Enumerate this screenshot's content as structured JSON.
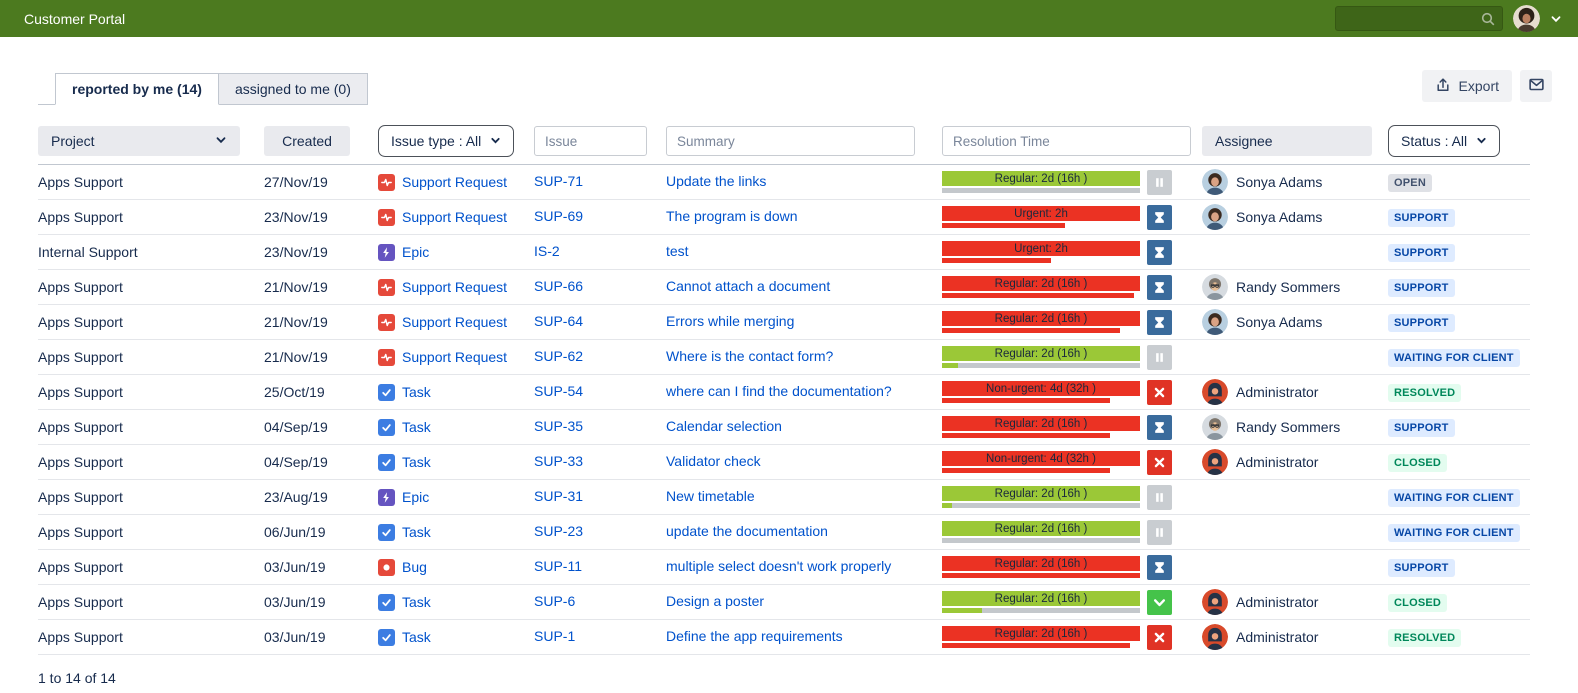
{
  "topbar": {
    "title": "Customer Portal",
    "search_value": ""
  },
  "tabs": [
    {
      "label": "reported by me (14)",
      "active": true
    },
    {
      "label": "assigned to me (0)",
      "active": false
    }
  ],
  "actions": {
    "export_label": "Export"
  },
  "filters": {
    "project_label": "Project",
    "created_label": "Created",
    "issue_type_label": "Issue type : All",
    "issue_placeholder": "Issue",
    "summary_placeholder": "Summary",
    "resolution_placeholder": "Resolution Time",
    "assignee_label": "Assignee",
    "status_label": "Status : All"
  },
  "colors": {
    "topbar_green": "#4C7A1F",
    "sla_green": "#9BC837",
    "sla_red": "#EB3223",
    "link_blue": "#0052CC"
  },
  "rows": [
    {
      "project": "Apps Support",
      "created": "27/Nov/19",
      "type": "Support Request",
      "type_icon": "support-request",
      "issue": "SUP-71",
      "summary": "Update the links",
      "resolution": "Regular: 2d (16h )",
      "bar": "green",
      "progress": 0,
      "res_icon": "pause",
      "assignee": "Sonya Adams",
      "avatar": "sonya",
      "status": "OPEN",
      "status_variant": "gray"
    },
    {
      "project": "Apps Support",
      "created": "23/Nov/19",
      "type": "Support Request",
      "type_icon": "support-request",
      "issue": "SUP-69",
      "summary": "The program is down",
      "resolution": "Urgent: 2h",
      "bar": "red",
      "progress": 62,
      "res_icon": "hourglass",
      "assignee": "Sonya Adams",
      "avatar": "sonya",
      "status": "SUPPORT",
      "status_variant": "blue"
    },
    {
      "project": "Internal Support",
      "created": "23/Nov/19",
      "type": "Epic",
      "type_icon": "epic",
      "issue": "IS-2",
      "summary": "test",
      "resolution": "Urgent: 2h",
      "bar": "red",
      "progress": 55,
      "res_icon": "hourglass",
      "assignee": null,
      "avatar": null,
      "status": "SUPPORT",
      "status_variant": "blue"
    },
    {
      "project": "Apps Support",
      "created": "21/Nov/19",
      "type": "Support Request",
      "type_icon": "support-request",
      "issue": "SUP-66",
      "summary": "Cannot attach a document",
      "resolution": "Regular: 2d (16h )",
      "bar": "red",
      "progress": 97,
      "res_icon": "hourglass",
      "assignee": "Randy Sommers",
      "avatar": "randy",
      "status": "SUPPORT",
      "status_variant": "blue"
    },
    {
      "project": "Apps Support",
      "created": "21/Nov/19",
      "type": "Support Request",
      "type_icon": "support-request",
      "issue": "SUP-64",
      "summary": "Errors while merging",
      "resolution": "Regular: 2d (16h )",
      "bar": "red",
      "progress": 90,
      "res_icon": "hourglass",
      "assignee": "Sonya Adams",
      "avatar": "sonya",
      "status": "SUPPORT",
      "status_variant": "blue"
    },
    {
      "project": "Apps Support",
      "created": "21/Nov/19",
      "type": "Support Request",
      "type_icon": "support-request",
      "issue": "SUP-62",
      "summary": "Where is the contact form?",
      "resolution": "Regular: 2d (16h )",
      "bar": "green",
      "progress": 8,
      "res_icon": "pause",
      "assignee": null,
      "avatar": null,
      "status": "WAITING FOR CLIENT",
      "status_variant": "blue"
    },
    {
      "project": "Apps Support",
      "created": "25/Oct/19",
      "type": "Task",
      "type_icon": "task",
      "issue": "SUP-54",
      "summary": "where can I find the documentation?",
      "resolution": "Non-urgent: 4d (32h )",
      "bar": "red",
      "progress": 85,
      "res_icon": "x",
      "assignee": "Administrator",
      "avatar": "admin",
      "status": "RESOLVED",
      "status_variant": "green"
    },
    {
      "project": "Apps Support",
      "created": "04/Sep/19",
      "type": "Task",
      "type_icon": "task",
      "issue": "SUP-35",
      "summary": "Calendar selection",
      "resolution": "Regular: 2d (16h )",
      "bar": "red",
      "progress": 85,
      "res_icon": "hourglass",
      "assignee": "Randy Sommers",
      "avatar": "randy",
      "status": "SUPPORT",
      "status_variant": "blue"
    },
    {
      "project": "Apps Support",
      "created": "04/Sep/19",
      "type": "Task",
      "type_icon": "task",
      "issue": "SUP-33",
      "summary": "Validator check",
      "resolution": "Non-urgent: 4d (32h )",
      "bar": "red",
      "progress": 85,
      "res_icon": "x",
      "assignee": "Administrator",
      "avatar": "admin",
      "status": "CLOSED",
      "status_variant": "green"
    },
    {
      "project": "Apps Support",
      "created": "23/Aug/19",
      "type": "Epic",
      "type_icon": "epic",
      "issue": "SUP-31",
      "summary": "New timetable",
      "resolution": "Regular: 2d (16h )",
      "bar": "green",
      "progress": 5,
      "res_icon": "pause",
      "assignee": null,
      "avatar": null,
      "status": "WAITING FOR CLIENT",
      "status_variant": "blue"
    },
    {
      "project": "Apps Support",
      "created": "06/Jun/19",
      "type": "Task",
      "type_icon": "task",
      "issue": "SUP-23",
      "summary": "update the documentation",
      "resolution": "Regular: 2d (16h )",
      "bar": "green",
      "progress": 0,
      "res_icon": "pause",
      "assignee": null,
      "avatar": null,
      "status": "WAITING FOR CLIENT",
      "status_variant": "blue"
    },
    {
      "project": "Apps Support",
      "created": "03/Jun/19",
      "type": "Bug",
      "type_icon": "bug",
      "issue": "SUP-11",
      "summary": "multiple select doesn't work properly",
      "resolution": "Regular: 2d (16h )",
      "bar": "red",
      "progress": 100,
      "res_icon": "hourglass",
      "assignee": null,
      "avatar": null,
      "status": "SUPPORT",
      "status_variant": "blue"
    },
    {
      "project": "Apps Support",
      "created": "03/Jun/19",
      "type": "Task",
      "type_icon": "task",
      "issue": "SUP-6",
      "summary": "Design a poster",
      "resolution": "Regular: 2d (16h )",
      "bar": "green",
      "progress": 20,
      "res_icon": "check",
      "assignee": "Administrator",
      "avatar": "admin",
      "status": "CLOSED",
      "status_variant": "green"
    },
    {
      "project": "Apps Support",
      "created": "03/Jun/19",
      "type": "Task",
      "type_icon": "task",
      "issue": "SUP-1",
      "summary": "Define the app requirements",
      "resolution": "Regular: 2d (16h )",
      "bar": "red",
      "progress": 95,
      "res_icon": "x",
      "assignee": "Administrator",
      "avatar": "admin",
      "status": "RESOLVED",
      "status_variant": "green"
    }
  ],
  "footer": {
    "count_text": "1 to 14 of 14"
  }
}
